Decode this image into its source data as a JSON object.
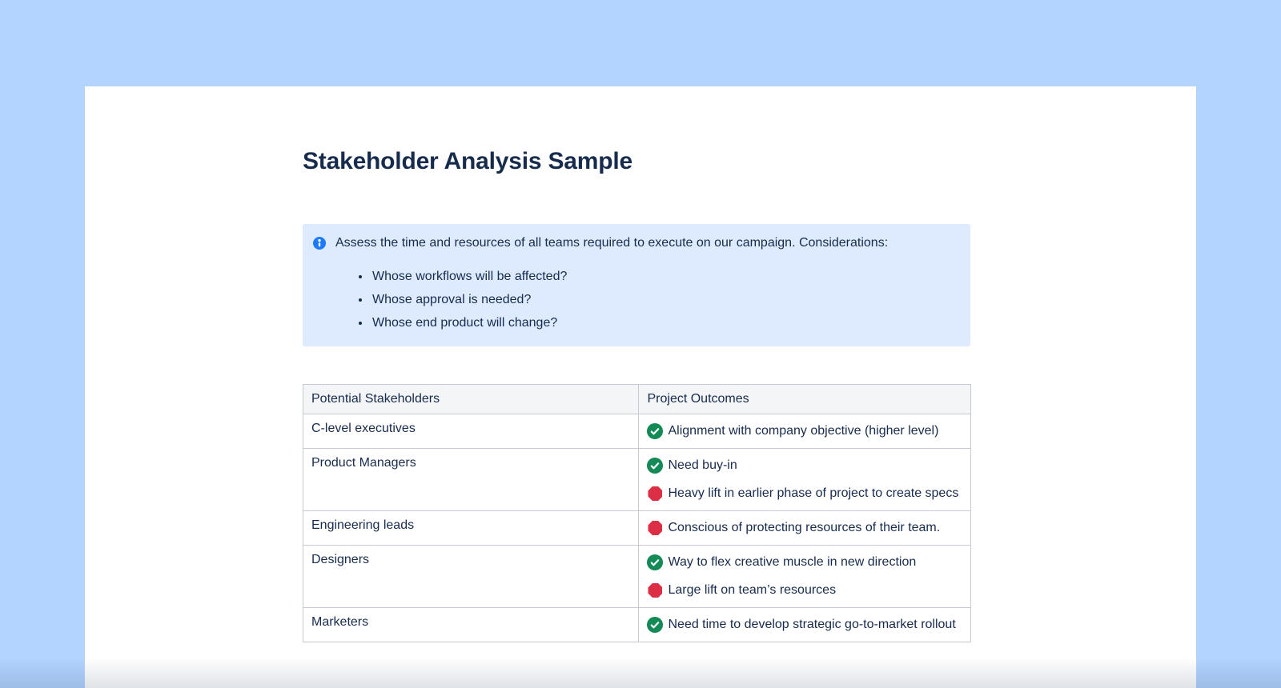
{
  "page": {
    "title": "Stakeholder Analysis Sample"
  },
  "info_panel": {
    "icon": "info-icon",
    "lead": "Assess the time and resources of all teams required to execute on our campaign. Considerations:",
    "bullets": [
      "Whose workflows will be affected?",
      "Whose approval is needed?",
      "Whose end product will change?"
    ]
  },
  "table": {
    "headers": [
      "Potential Stakeholders",
      "Project Outcomes"
    ],
    "rows": [
      {
        "stakeholder": "C-level executives",
        "outcomes": [
          {
            "icon": "check-icon",
            "text": "Alignment with company objective (higher level)"
          }
        ]
      },
      {
        "stakeholder": "Product Managers",
        "outcomes": [
          {
            "icon": "check-icon",
            "text": "Need buy-in"
          },
          {
            "icon": "stop-icon",
            "text": "Heavy lift in earlier phase of project to create specs"
          }
        ]
      },
      {
        "stakeholder": "Engineering leads",
        "outcomes": [
          {
            "icon": "stop-icon",
            "text": "Conscious of protecting resources of their team."
          }
        ]
      },
      {
        "stakeholder": "Designers",
        "outcomes": [
          {
            "icon": "check-icon",
            "text": "Way to flex creative muscle in new direction"
          },
          {
            "icon": "stop-icon",
            "text": "Large lift on team’s resources"
          }
        ]
      },
      {
        "stakeholder": "Marketers",
        "outcomes": [
          {
            "icon": "check-icon",
            "text": "Need time to develop strategic go-to-market rollout"
          }
        ]
      }
    ]
  },
  "colors": {
    "page_background": "#B3D4FF",
    "card_background": "#FFFFFF",
    "text": "#172B4D",
    "info_panel_background": "#DEEBFF",
    "info_icon_blue": "#1D7AFC",
    "check_green": "#148A56",
    "stop_red": "#DC2E44",
    "table_header_background": "#F4F5F7",
    "table_border": "#C6CBD3"
  }
}
